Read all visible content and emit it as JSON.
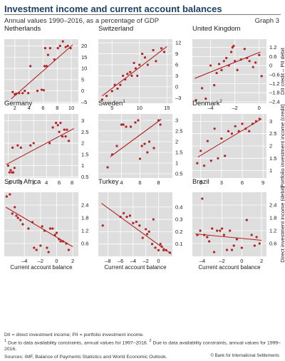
{
  "header": {
    "title": "Investment income and current account balances",
    "subtitle": "Annual values 1990–2016, as a percentage of GDP",
    "graph_number": "Graph 3"
  },
  "footer": {
    "legend_note": "DII = direct investment income; PII = portfolio investment income.",
    "footnote_1_mark": "1",
    "footnote_1": "Due to data availability constraints, annual values for 1997–2016.",
    "footnote_2_mark": "2",
    "footnote_2": "Due to data availability constraints, annual values for 1999–2016.",
    "sources": "Sources: IMF, Balance of Payments Statistics and World Economic Outlook.",
    "copyright": "© Bank for International Settlements"
  },
  "colors": {
    "panel_bg": "#dedede",
    "grid": "#ffffff",
    "point": "#b22222",
    "fit_line": "#b22222",
    "title": "#1e3f66"
  },
  "chart_data": [
    {
      "type": "scatter",
      "title": "Netherlands",
      "xlim": [
        0.5,
        11
      ],
      "xticks": [
        2,
        4,
        6,
        8,
        10
      ],
      "ylim": [
        -5.5,
        23
      ],
      "yticks": [
        -5,
        0,
        5,
        10,
        15,
        20
      ],
      "ytick_side": "right",
      "ylabel": "",
      "x": [
        1.7,
        2.0,
        2.2,
        2.6,
        3.1,
        3.4,
        3.9,
        4.2,
        5.2,
        5.8,
        6.1,
        6.2,
        6.3,
        6.5,
        6.7,
        7.0,
        7.6,
        8.1,
        8.4,
        8.8,
        9.2,
        9.5,
        9.9
      ],
      "y": [
        -0.5,
        -1.5,
        -1.3,
        -1.0,
        -1.0,
        0.0,
        -1.0,
        11.0,
        0.0,
        0.5,
        0.3,
        11.0,
        19.0,
        11.0,
        16.0,
        19.0,
        14.0,
        19.0,
        20.0,
        22.0,
        19.5,
        20.0,
        19.0
      ],
      "fit": [
        [
          1.5,
          -3.5
        ],
        [
          10.2,
          20.5
        ]
      ]
    },
    {
      "type": "scatter",
      "title": "Switzerland",
      "xlim": [
        2.5,
        16
      ],
      "xticks": [
        5,
        10,
        15
      ],
      "ylim": [
        -4.5,
        13
      ],
      "yticks": [
        -3,
        0,
        3,
        6,
        9,
        12
      ],
      "ytick_side": "right",
      "ylabel": "",
      "x": [
        3.2,
        4.0,
        5.0,
        5.5,
        6.0,
        6.5,
        7.0,
        7.4,
        7.8,
        8.3,
        8.6,
        9.0,
        9.3,
        9.6,
        10.0,
        10.5,
        11.0,
        11.5,
        12.5,
        13.0,
        14.0,
        14.5
      ],
      "y": [
        -3.5,
        -2.5,
        -1.2,
        0.5,
        -0.5,
        0.5,
        3.0,
        2.0,
        3.5,
        4.0,
        3.0,
        6.5,
        5.0,
        3.0,
        6.0,
        9.0,
        8.0,
        6.0,
        10.0,
        7.0,
        10.5,
        9.5
      ],
      "fit": [
        [
          3.2,
          -2.5
        ],
        [
          15.0,
          11.0
        ]
      ]
    },
    {
      "type": "scatter",
      "title": "United Kingdom",
      "xlim": [
        -5.5,
        0.6
      ],
      "xticks": [
        -4,
        -2,
        0
      ],
      "ylim": [
        -2.5,
        1.75
      ],
      "yticks": [
        -2.4,
        -1.8,
        -1.2,
        -0.6,
        0.0,
        0.6,
        1.2
      ],
      "ytick_side": "right",
      "ylabel": "DII credit – PII debit",
      "x": [
        -5.2,
        -4.7,
        -4.4,
        -4.0,
        -3.7,
        -3.5,
        -3.3,
        -3.1,
        -2.9,
        -2.7,
        -2.5,
        -2.3,
        -2.2,
        -2.1,
        -2.0,
        -1.8,
        -1.5,
        -1.2,
        -1.0,
        -0.8,
        -0.5,
        -0.3,
        0.0,
        0.2
      ],
      "y": [
        -2.3,
        -1.5,
        -2.2,
        0.0,
        -1.3,
        -0.5,
        0.1,
        -0.3,
        0.3,
        0.5,
        0.0,
        0.9,
        1.2,
        1.3,
        0.3,
        -0.3,
        0.4,
        1.1,
        0.5,
        0.3,
        -0.1,
        0.2,
        0.7,
        -0.7
      ],
      "fit": [
        [
          -5.3,
          -0.85
        ],
        [
          0.1,
          0.9
        ]
      ]
    },
    {
      "type": "scatter",
      "title": "Germany",
      "xlim": [
        -2.6,
        9
      ],
      "xticks": [
        -2,
        0,
        2,
        4,
        6,
        8
      ],
      "ylim": [
        0.45,
        3.3
      ],
      "yticks": [
        0.5,
        1.0,
        1.5,
        2.0,
        2.5,
        3.0
      ],
      "ytick_side": "right",
      "ylabel": "",
      "x": [
        -2.0,
        -1.8,
        -1.6,
        -1.4,
        -1.3,
        -1.2,
        -1.0,
        -0.5,
        0.0,
        1.5,
        2.0,
        4.5,
        5.0,
        5.5,
        5.8,
        6.0,
        6.2,
        6.5,
        6.8,
        7.0,
        7.2,
        7.5
      ],
      "y": [
        1.0,
        0.7,
        0.8,
        0.7,
        1.8,
        0.7,
        0.9,
        1.9,
        1.8,
        1.9,
        2.0,
        2.0,
        2.7,
        2.9,
        2.8,
        2.5,
        2.9,
        2.3,
        2.6,
        2.3,
        2.6,
        2.1
      ],
      "fit": [
        [
          -2.3,
          1.05
        ],
        [
          8.3,
          2.65
        ]
      ]
    },
    {
      "type": "scatter",
      "title": "Sweden",
      "title_sup": "1",
      "xlim": [
        1.5,
        9.5
      ],
      "xticks": [
        4,
        6,
        8
      ],
      "ylim": [
        0.3,
        3.3
      ],
      "yticks": [
        0.5,
        1.0,
        1.5,
        2.0,
        2.5,
        3.0
      ],
      "ytick_side": "right",
      "ylabel": "",
      "x": [
        2.5,
        3.0,
        3.5,
        4.0,
        4.2,
        4.5,
        5.0,
        5.5,
        5.8,
        6.0,
        6.2,
        6.5,
        6.8,
        7.0,
        7.5,
        8.0,
        8.2
      ],
      "y": [
        0.8,
        1.4,
        1.8,
        2.8,
        2.8,
        2.7,
        2.7,
        2.9,
        3.0,
        1.2,
        1.8,
        1.9,
        1.5,
        2.0,
        1.7,
        3.0,
        2.8
      ],
      "fit": [
        [
          2.8,
          1.3
        ],
        [
          8.3,
          3.05
        ]
      ]
    },
    {
      "type": "scatter",
      "title": "Denmark",
      "title_sup": "2",
      "xlim": [
        -1.2,
        9.5
      ],
      "xticks": [
        0,
        3,
        6,
        9
      ],
      "ylim": [
        0.7,
        3.3
      ],
      "yticks": [
        1.0,
        1.5,
        2.0,
        2.5,
        3.0
      ],
      "ytick_side": "right",
      "ylabel": "Portfolio investment income (credit)",
      "x": [
        -0.5,
        0.0,
        0.5,
        1.0,
        1.5,
        2.0,
        2.5,
        3.0,
        3.5,
        4.0,
        4.5,
        5.0,
        5.5,
        6.0,
        6.5,
        7.0,
        7.5,
        8.0,
        8.5
      ],
      "y": [
        1.3,
        1.8,
        1.2,
        2.2,
        1.4,
        2.7,
        1.5,
        2.3,
        1.6,
        2.6,
        2.5,
        2.8,
        2.6,
        2.9,
        2.7,
        2.6,
        2.9,
        3.0,
        3.1
      ],
      "fit": [
        [
          -0.4,
          1.55
        ],
        [
          8.8,
          3.1
        ]
      ]
    },
    {
      "type": "scatter",
      "title": "South Africa",
      "xlim": [
        -6.5,
        2.7
      ],
      "xticks": [
        -4,
        -2,
        0,
        2
      ],
      "ylim": [
        0.0,
        3.0
      ],
      "yticks": [
        0.6,
        1.2,
        1.8,
        2.4
      ],
      "ytick_side": "right",
      "ylabel": "",
      "xlabel": "Current account balance",
      "x": [
        -6.2,
        -5.8,
        -5.5,
        -5.2,
        -5.0,
        -4.8,
        -4.5,
        -4.2,
        -3.5,
        -3.0,
        -2.8,
        -2.5,
        -2.0,
        -1.8,
        -1.5,
        -1.2,
        -1.0,
        -0.8,
        -0.5,
        -0.2,
        0.0,
        0.3,
        0.5,
        0.8,
        1.2,
        1.5
      ],
      "y": [
        2.8,
        2.9,
        2.0,
        2.3,
        1.9,
        1.8,
        1.7,
        1.5,
        1.3,
        1.6,
        0.4,
        0.3,
        0.5,
        1.4,
        1.2,
        0.4,
        0.2,
        1.3,
        1.3,
        1.0,
        1.1,
        0.8,
        0.7,
        0.7,
        0.6,
        0.3
      ],
      "fit": [
        [
          -6.3,
          2.3
        ],
        [
          2.0,
          0.45
        ]
      ]
    },
    {
      "type": "scatter",
      "title": "Turkey",
      "xlim": [
        -9.5,
        2.2
      ],
      "xticks": [
        -8,
        -6,
        -4,
        -2,
        0
      ],
      "ylim": [
        0.0,
        0.52
      ],
      "yticks": [
        0.1,
        0.2,
        0.3,
        0.4
      ],
      "ytick_side": "right",
      "ylabel": "",
      "xlabel": "Current account balance",
      "x": [
        -8.8,
        -6.0,
        -5.5,
        -5.0,
        -4.5,
        -4.0,
        -3.5,
        -3.0,
        -2.5,
        -2.0,
        -1.8,
        -1.5,
        -1.0,
        -0.8,
        -0.5,
        0.0,
        0.3,
        0.5,
        0.8,
        1.2,
        1.8
      ],
      "y": [
        0.25,
        0.32,
        0.35,
        0.32,
        0.33,
        0.27,
        0.28,
        0.25,
        0.15,
        0.22,
        0.18,
        0.2,
        0.1,
        0.3,
        0.07,
        0.05,
        0.1,
        0.08,
        0.05,
        0.05,
        0.03
      ],
      "fit": [
        [
          -9.0,
          0.43
        ],
        [
          2.0,
          0.02
        ]
      ]
    },
    {
      "type": "scatter",
      "title": "Brazil",
      "xlim": [
        -5,
        2.5
      ],
      "xticks": [
        -4,
        -2,
        0,
        2
      ],
      "ylim": [
        0.0,
        3.0
      ],
      "yticks": [
        0.6,
        1.2,
        1.8,
        2.4
      ],
      "ytick_side": "right",
      "ylabel": "Direct investment income (debit)",
      "xlabel": "Current account balance",
      "x": [
        -4.5,
        -4.2,
        -4.0,
        -3.8,
        -3.5,
        -3.3,
        -3.0,
        -2.8,
        -2.5,
        -2.2,
        -2.0,
        -1.8,
        -1.5,
        -1.2,
        -1.0,
        -0.8,
        -0.5,
        0.0,
        0.5,
        1.0,
        1.3,
        1.5,
        1.8
      ],
      "y": [
        1.0,
        1.2,
        2.7,
        1.0,
        0.9,
        0.7,
        1.3,
        0.2,
        1.2,
        1.2,
        1.3,
        1.0,
        0.3,
        1.2,
        0.3,
        0.5,
        0.8,
        0.4,
        1.7,
        1.0,
        0.5,
        0.9,
        0.6
      ],
      "fit": [
        [
          -4.7,
          1.05
        ],
        [
          2.0,
          0.75
        ]
      ]
    }
  ]
}
